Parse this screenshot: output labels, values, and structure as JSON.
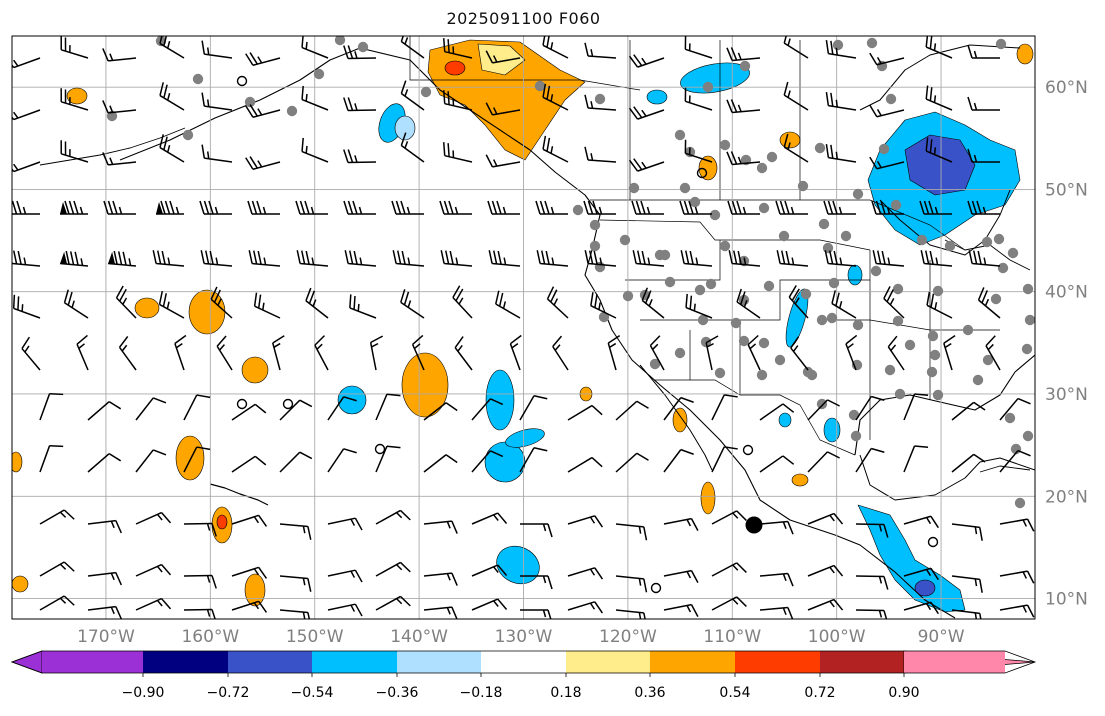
{
  "title": "2025091100 F060",
  "map": {
    "lon_range": [
      -179,
      -81
    ],
    "lat_range": [
      8,
      65
    ],
    "lon_ticks": [
      {
        "value": -170,
        "label": "170°W"
      },
      {
        "value": -160,
        "label": "160°W"
      },
      {
        "value": -150,
        "label": "150°W"
      },
      {
        "value": -140,
        "label": "140°W"
      },
      {
        "value": -130,
        "label": "130°W"
      },
      {
        "value": -120,
        "label": "120°W"
      },
      {
        "value": -110,
        "label": "110°W"
      },
      {
        "value": -100,
        "label": "100°W"
      },
      {
        "value": -90,
        "label": "90°W"
      }
    ],
    "lat_ticks": [
      {
        "value": 10,
        "label": "10°N"
      },
      {
        "value": 20,
        "label": "20°N"
      },
      {
        "value": 30,
        "label": "30°N"
      },
      {
        "value": 40,
        "label": "40°N"
      },
      {
        "value": 50,
        "label": "50°N"
      },
      {
        "value": 60,
        "label": "60°N"
      }
    ],
    "gridlines": true,
    "tick_label_color": "#808080"
  },
  "colorbar": {
    "ticks": [
      "−0.90",
      "−0.72",
      "−0.54",
      "−0.36",
      "−0.18",
      "0.18",
      "0.36",
      "0.54",
      "0.72",
      "0.90"
    ],
    "colors": [
      "#9b30d6",
      "#000080",
      "#3a52c8",
      "#00bfff",
      "#b0e0ff",
      "#ffffff",
      "#ffec8b",
      "#ffa500",
      "#ff3c00",
      "#b22222",
      "#ff88aa"
    ],
    "extend": "both"
  },
  "field_colors": {
    "neg_light": "#b0e0ff",
    "neg_mid": "#00bfff",
    "neg_strong": "#3a52c8",
    "pos_light": "#ffec8b",
    "pos_mid": "#ffa500",
    "pos_strong": "#ff3c00",
    "station": "#808080"
  }
}
